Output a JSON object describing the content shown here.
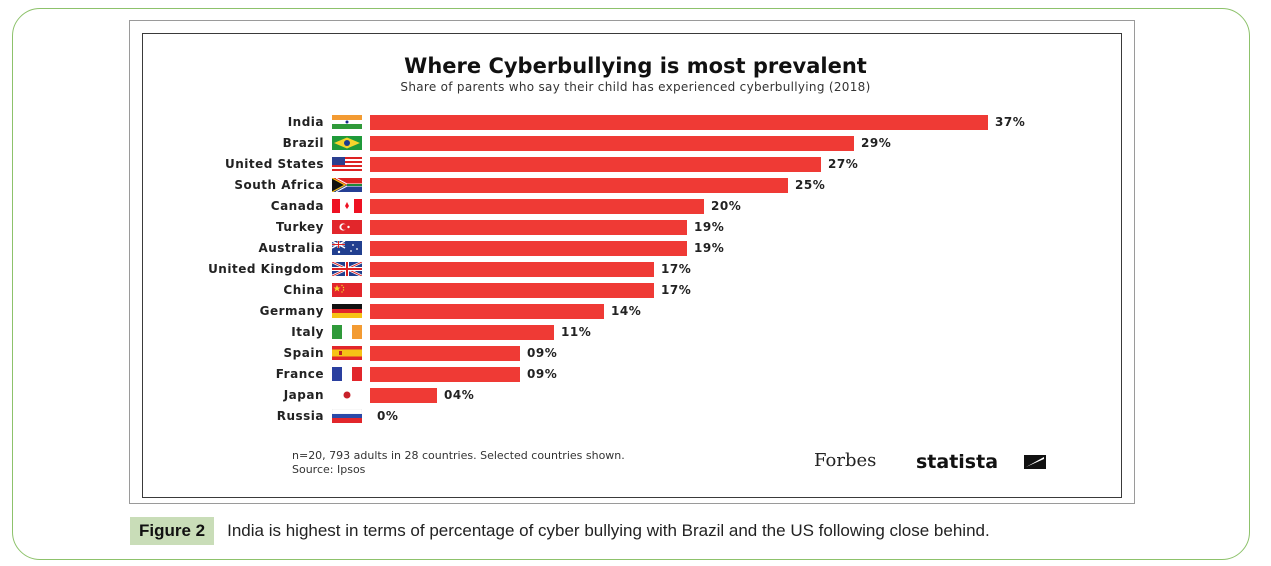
{
  "chart_data": {
    "type": "bar",
    "orientation": "horizontal",
    "title": "Where Cyberbullying is most prevalent",
    "subtitle": "Share of parents who say their child has experienced cyberbullying (2018)",
    "categories": [
      "India",
      "Brazil",
      "United States",
      "South Africa",
      "Canada",
      "Turkey",
      "Australia",
      "United Kingdom",
      "China",
      "Germany",
      "Italy",
      "Spain",
      "France",
      "Japan",
      "Russia"
    ],
    "values": [
      37,
      29,
      27,
      25,
      20,
      19,
      19,
      17,
      17,
      14,
      11,
      9,
      9,
      4,
      0
    ],
    "value_labels": [
      "37%",
      "29%",
      "27%",
      "25%",
      "20%",
      "19%",
      "19%",
      "17%",
      "17%",
      "14%",
      "11%",
      "09%",
      "09%",
      "04%",
      "0%"
    ],
    "flags": [
      "india-flag-icon",
      "brazil-flag-icon",
      "us-flag-icon",
      "south-africa-flag-icon",
      "canada-flag-icon",
      "turkey-flag-icon",
      "australia-flag-icon",
      "uk-flag-icon",
      "china-flag-icon",
      "germany-flag-icon",
      "italy-flag-icon",
      "spain-flag-icon",
      "france-flag-icon",
      "japan-flag-icon",
      "russia-flag-icon"
    ],
    "bar_color": "#ef3a35",
    "xlim": [
      0,
      37
    ]
  },
  "footer": {
    "note": "n=20, 793 adults in 28 countries. Selected countries shown.",
    "source": "Source: Ipsos",
    "brand1": "Forbes",
    "brand2": "statista"
  },
  "caption": {
    "label": "Figure 2",
    "text": "India is highest in terms of percentage of cyber bullying with Brazil and the US following close behind."
  },
  "colors": {
    "border_green": "#8dc26b",
    "caption_bg": "#c9ddb8"
  }
}
